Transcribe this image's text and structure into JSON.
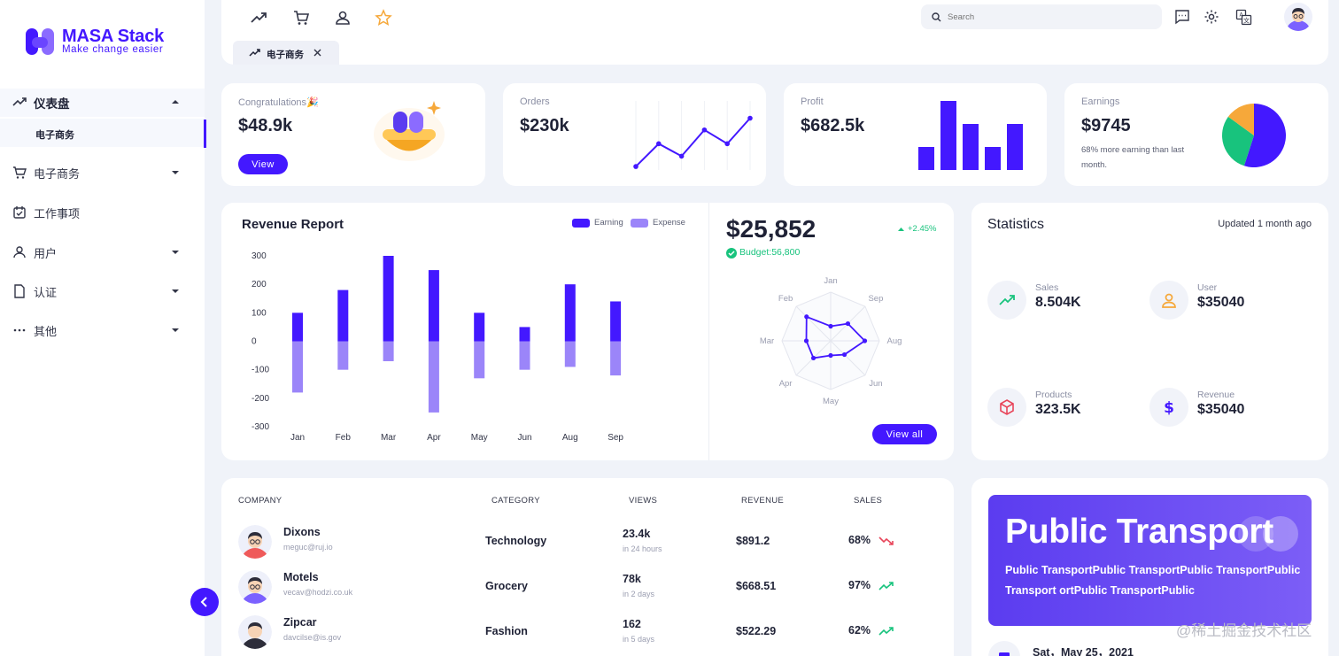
{
  "brand": {
    "title": "MASA Stack",
    "tagline": "Make change easier",
    "accent": "#4318ff"
  },
  "sidebar": {
    "items": [
      {
        "label": "仪表盘",
        "icon": "trending-up-icon",
        "expanded": true
      },
      {
        "label": "电子商务",
        "icon": "cart-icon"
      },
      {
        "label": "工作事项",
        "icon": "calendar-check-icon"
      },
      {
        "label": "用户",
        "icon": "user-icon"
      },
      {
        "label": "认证",
        "icon": "document-icon"
      },
      {
        "label": "其他",
        "icon": "more-horizontal-icon"
      }
    ],
    "subitem": "电子商务"
  },
  "topbar": {
    "shortcuts": [
      "trending-up-icon",
      "cart-icon",
      "user-icon",
      "star-icon"
    ],
    "search_placeholder": "Search",
    "tab_label": "电子商务"
  },
  "kpis": {
    "congrats": {
      "label": "Congratulations🎉",
      "value": "$48.9k",
      "button": "View"
    },
    "orders": {
      "label": "Orders",
      "value": "$230k"
    },
    "profit": {
      "label": "Profit",
      "value": "$682.5k"
    },
    "earnings": {
      "label": "Earnings",
      "value": "$9745",
      "note": "68% more earning than last month."
    }
  },
  "revenue": {
    "title": "Revenue Report",
    "legend": [
      "Earning",
      "Expense"
    ],
    "big_value": "$25,852",
    "change": "+2.45%",
    "budget": "Budget:56,800",
    "view_all": "View all"
  },
  "statistics": {
    "title": "Statistics",
    "updated": "Updated 1 month ago",
    "items": [
      {
        "label": "Sales",
        "value": "8.504K",
        "icon": "trending-up-icon",
        "color": "#18c37d"
      },
      {
        "label": "User",
        "value": "$35040",
        "icon": "user-icon",
        "color": "#f6a83a"
      },
      {
        "label": "Products",
        "value": "323.5K",
        "icon": "box-icon",
        "color": "#e8455a"
      },
      {
        "label": "Revenue",
        "value": "$35040",
        "icon": "dollar-icon",
        "color": "#4318ff"
      }
    ]
  },
  "table": {
    "headers": [
      "COMPANY",
      "CATEGORY",
      "VIEWS",
      "REVENUE",
      "SALES"
    ],
    "rows": [
      {
        "name": "Dixons",
        "email": "meguc@ruj.io",
        "category": "Technology",
        "views": "23.4k",
        "views_time": "in 24 hours",
        "revenue": "$891.2",
        "sales": "68%",
        "trend": "down"
      },
      {
        "name": "Motels",
        "email": "vecav@hodzi.co.uk",
        "category": "Grocery",
        "views": "78k",
        "views_time": "in 2 days",
        "revenue": "$668.51",
        "sales": "97%",
        "trend": "up"
      },
      {
        "name": "Zipcar",
        "email": "davcilse@is.gov",
        "category": "Fashion",
        "views": "162",
        "views_time": "in 5 days",
        "revenue": "$522.29",
        "sales": "62%",
        "trend": "up"
      }
    ]
  },
  "promo": {
    "title": "Public Transport",
    "body": "Public TransportPublic TransportPublic TransportPublic Transport ortPublic TransportPublic"
  },
  "date": "Sat，May 25，2021",
  "watermark": "@稀土掘金技术社区",
  "chart_data": [
    {
      "type": "line",
      "title": "Orders",
      "x": [
        1,
        2,
        3,
        4,
        5,
        6
      ],
      "values": [
        5,
        38,
        20,
        58,
        38,
        75
      ],
      "ylim": [
        0,
        100
      ]
    },
    {
      "type": "bar",
      "title": "Profit",
      "categories": [
        "1",
        "2",
        "3",
        "4",
        "5"
      ],
      "values": [
        25,
        75,
        50,
        25,
        50
      ],
      "ylim": [
        0,
        75
      ]
    },
    {
      "type": "pie",
      "title": "Earnings",
      "categories": [
        "Primary",
        "Green",
        "Orange"
      ],
      "values": [
        55,
        30,
        15
      ],
      "colors": [
        "#4318ff",
        "#18c37d",
        "#f6a83a"
      ]
    },
    {
      "type": "bar",
      "title": "Revenue Report",
      "categories": [
        "Jan",
        "Feb",
        "Mar",
        "Apr",
        "May",
        "Jun",
        "Aug",
        "Sep"
      ],
      "series": [
        {
          "name": "Earning",
          "values": [
            100,
            180,
            300,
            250,
            100,
            50,
            200,
            140
          ]
        },
        {
          "name": "Expense",
          "values": [
            -180,
            -100,
            -70,
            -250,
            -130,
            -100,
            -90,
            -120
          ]
        }
      ],
      "ylim": [
        -300,
        300
      ],
      "yticks": [
        300,
        200,
        100,
        0,
        -100,
        -200,
        -300
      ]
    },
    {
      "type": "radar",
      "title": "Budget",
      "categories": [
        "Jan",
        "Sep",
        "Aug",
        "Jun",
        "May",
        "Apr",
        "Mar",
        "Feb"
      ],
      "values": [
        3,
        5,
        7,
        4,
        3,
        5,
        5,
        7
      ],
      "rmax": 10
    }
  ]
}
